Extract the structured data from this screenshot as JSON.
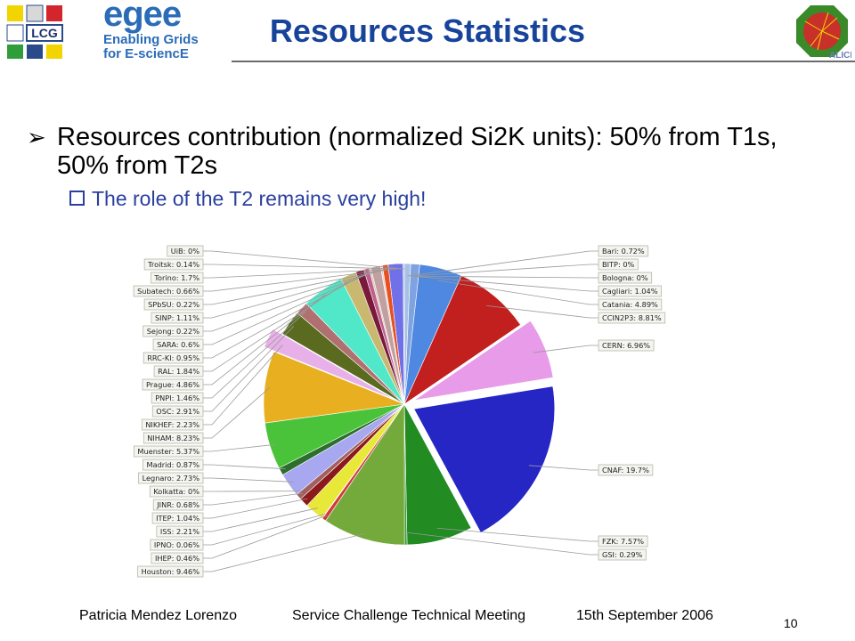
{
  "header": {
    "title": "Resources Statistics",
    "egee_logo": {
      "word": "egee",
      "tagline_line1": "Enabling Grids",
      "tagline_line2": "for E-sciencE"
    },
    "lcg_logo_text": "LCG",
    "alice_logo_text": "ALICE"
  },
  "body": {
    "bullet1_symbol": "➢",
    "bullet1": "Resources contribution (normalized Si2K units): 50% from T1s, 50% from T2s",
    "bullet2": "The role of the T2 remains very high!"
  },
  "footer": {
    "author": "Patricia Mendez Lorenzo",
    "meeting": "Service Challenge Technical Meeting",
    "date": "15th September 2006",
    "page_number": "10"
  },
  "chart_data": {
    "type": "pie",
    "title": "",
    "slices": [
      {
        "label": "Bari",
        "value": 0.72,
        "color": "#a8c0e6"
      },
      {
        "label": "BITP",
        "value": 0,
        "color": "#8aa6d8"
      },
      {
        "label": "Bologna",
        "value": 0,
        "color": "#6b8fd4"
      },
      {
        "label": "Cagliari",
        "value": 1.04,
        "color": "#7fa2e0"
      },
      {
        "label": "Catania",
        "value": 4.89,
        "color": "#4f88e0"
      },
      {
        "label": "CCIN2P3",
        "value": 8.81,
        "color": "#c21f1f"
      },
      {
        "label": "CERN",
        "value": 6.96,
        "color": "#e89be8"
      },
      {
        "label": "CNAF",
        "value": 19.7,
        "color": "#2626c4"
      },
      {
        "label": "FZK",
        "value": 7.57,
        "color": "#228b22"
      },
      {
        "label": "GSI",
        "value": 0.29,
        "color": "#3a9d3a"
      },
      {
        "label": "Houston",
        "value": 9.46,
        "color": "#74aa3c"
      },
      {
        "label": "IHEP",
        "value": 0.46,
        "color": "#d23a3a"
      },
      {
        "label": "IPNO",
        "value": 0.06,
        "color": "#c8c800"
      },
      {
        "label": "ISS",
        "value": 2.21,
        "color": "#e8e838"
      },
      {
        "label": "ITEP",
        "value": 1.04,
        "color": "#8b1a1a"
      },
      {
        "label": "JINR",
        "value": 0.68,
        "color": "#a06060"
      },
      {
        "label": "Kolkatta",
        "value": 0,
        "color": "#c08080"
      },
      {
        "label": "Legnaro",
        "value": 2.73,
        "color": "#a8a8f0"
      },
      {
        "label": "Madrid",
        "value": 0.87,
        "color": "#2c6e2c"
      },
      {
        "label": "Muenster",
        "value": 5.37,
        "color": "#4ac33a"
      },
      {
        "label": "NIHAM",
        "value": 8.23,
        "color": "#e8b020"
      },
      {
        "label": "NIKHEF",
        "value": 2.23,
        "color": "#e8b0e8"
      },
      {
        "label": "OSC",
        "value": 2.91,
        "color": "#5a6b20"
      },
      {
        "label": "PNPI",
        "value": 1.46,
        "color": "#b07070"
      },
      {
        "label": "Prague",
        "value": 4.86,
        "color": "#50e8c8"
      },
      {
        "label": "RAL",
        "value": 1.84,
        "color": "#c8b870"
      },
      {
        "label": "RRC-KI",
        "value": 0.95,
        "color": "#7a1a3a"
      },
      {
        "label": "SARA",
        "value": 0.6,
        "color": "#c06090"
      },
      {
        "label": "Sejong",
        "value": 0.22,
        "color": "#d8c8a8"
      },
      {
        "label": "SINP",
        "value": 1.11,
        "color": "#c0a0a0"
      },
      {
        "label": "SPbSU",
        "value": 0.22,
        "color": "#e8d0d0"
      },
      {
        "label": "Subatech",
        "value": 0.66,
        "color": "#e85020"
      },
      {
        "label": "Torino",
        "value": 1.7,
        "color": "#7070e8"
      },
      {
        "label": "Troitsk",
        "value": 0.14,
        "color": "#90c0f0"
      },
      {
        "label": "UiB",
        "value": 0,
        "color": "#c0d0e0"
      }
    ],
    "label_texts": {
      "Bari": "Bari: 0.72%",
      "BITP": "BITP: 0%",
      "Bologna": "Bologna: 0%",
      "Cagliari": "Cagliari: 1.04%",
      "Catania": "Catania: 4.89%",
      "CCIN2P3": "CCIN2P3: 8.81%",
      "CERN": "CERN: 6.96%",
      "CNAF": "CNAF: 19.7%",
      "FZK": "FZK: 7.57%",
      "GSI": "GSI: 0.29%",
      "Houston": "Houston: 9.46%",
      "IHEP": "IHEP: 0.46%",
      "IPNO": "IPNO: 0.06%",
      "ISS": "ISS: 2.21%",
      "ITEP": "ITEP: 1.04%",
      "JINR": "JINR: 0.68%",
      "Kolkatta": "Kolkatta: 0%",
      "Legnaro": "Legnaro: 2.73%",
      "Madrid": "Madrid: 0.87%",
      "Muenster": "Muenster: 5.37%",
      "NIHAM": "NIHAM: 8.23%",
      "NIKHEF": "NIKHEF: 2.23%",
      "OSC": "OSC: 2.91%",
      "PNPI": "PNPI: 1.46%",
      "Prague": "Prague: 4.86%",
      "RAL": "RAL: 1.84%",
      "RRC-KI": "RRC-KI: 0.95%",
      "SARA": "SARA: 0.6%",
      "Sejong": "Sejong: 0.22%",
      "SINP": "SINP: 1.11%",
      "SPbSU": "SPbSU: 0.22%",
      "Subatech": "Subatech: 0.66%",
      "Torino": "Torino: 1.7%",
      "Troitsk": "Troitsk: 0.14%",
      "UiB": "UiB: 0%"
    },
    "exploded_slices": [
      "CERN",
      "CNAF",
      "NIKHEF"
    ],
    "labels_right": [
      "Bari",
      "BITP",
      "Bologna",
      "Cagliari",
      "Catania",
      "CCIN2P3",
      "CERN",
      "CNAF",
      "FZK",
      "GSI"
    ],
    "labels_left": [
      "UiB",
      "Troitsk",
      "Torino",
      "Subatech",
      "SPbSU",
      "SINP",
      "Sejong",
      "SARA",
      "RRC-KI",
      "RAL",
      "Prague",
      "PNPI",
      "OSC",
      "NIKHEF",
      "NIHAM",
      "Muenster",
      "Madrid",
      "Legnaro",
      "Kolkatta",
      "JINR",
      "ITEP",
      "ISS",
      "IPNO",
      "IHEP",
      "Houston"
    ],
    "legend": "none"
  }
}
